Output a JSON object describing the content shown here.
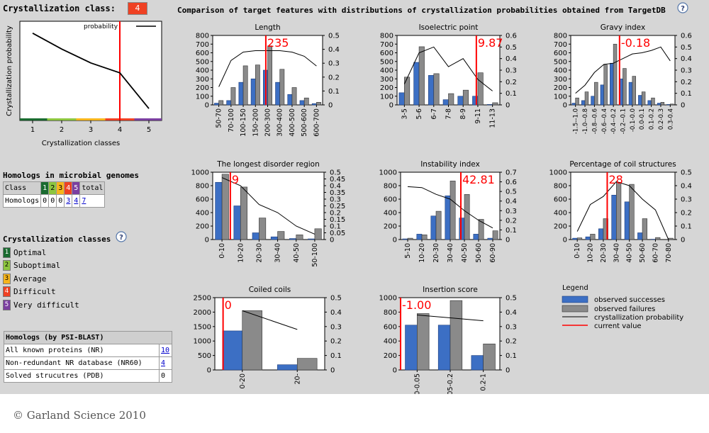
{
  "header": {
    "class_label": "Crystallization class:",
    "class_value": "4",
    "title": "Comparison of target features with distributions of crystallization probabilities obtained from TargetDB"
  },
  "colors": {
    "success": "#3c6fc4",
    "failure": "#8a8a8a",
    "current": "#ff0000",
    "line": "#000000",
    "c1": "#1a6b30",
    "c2": "#8dc63f",
    "c3": "#f7b51c",
    "c4": "#ef4123",
    "c5": "#7b3fa0"
  },
  "left_chart": {
    "type": "line",
    "ylabel": "Crystallization probability",
    "xlabel": "Crystallization classes",
    "legend": "probability",
    "x": [
      1,
      2,
      3,
      4,
      5
    ],
    "y": [
      0.88,
      0.72,
      0.58,
      0.48,
      0.12
    ],
    "ylim": [
      0,
      1
    ],
    "ticks": [
      "1",
      "2",
      "3",
      "4",
      "5"
    ],
    "current": 4
  },
  "chart_data": [
    {
      "type": "bar",
      "title": "Length",
      "categories": [
        "50-70",
        "70-100",
        "100-150",
        "150-200",
        "200-300",
        "300-400",
        "400-500",
        "500-600",
        "600-700"
      ],
      "series": [
        {
          "name": "observed successes",
          "values": [
            20,
            50,
            260,
            300,
            400,
            260,
            120,
            50,
            15
          ]
        },
        {
          "name": "observed failures",
          "values": [
            50,
            200,
            450,
            460,
            680,
            410,
            200,
            80,
            30
          ]
        },
        {
          "name": "crystallization probability",
          "values": [
            0.13,
            0.32,
            0.38,
            0.39,
            0.39,
            0.39,
            0.38,
            0.35,
            0.28
          ]
        }
      ],
      "ylim": [
        0,
        800
      ],
      "y_ticks": [
        0,
        100,
        200,
        300,
        400,
        500,
        600,
        700,
        800
      ],
      "y2lim": [
        0,
        0.5
      ],
      "y2_ticks": [
        0,
        0.1,
        0.2,
        0.3,
        0.4,
        0.5
      ],
      "current_label": "235",
      "current_pos": 4.35
    },
    {
      "type": "bar",
      "title": "Isoelectric point",
      "categories": [
        "3-5",
        "5-6",
        "6-7",
        "7-8",
        "8-9",
        "9-11",
        "11-13"
      ],
      "series": [
        {
          "name": "observed successes",
          "values": [
            140,
            490,
            340,
            60,
            100,
            100,
            5
          ]
        },
        {
          "name": "observed failures",
          "values": [
            320,
            670,
            360,
            130,
            170,
            370,
            25
          ]
        },
        {
          "name": "crystallization probability",
          "values": [
            0.18,
            0.45,
            0.5,
            0.33,
            0.4,
            0.22,
            0.12
          ]
        }
      ],
      "ylim": [
        0,
        800
      ],
      "y_ticks": [
        0,
        100,
        200,
        300,
        400,
        500,
        600,
        700,
        800
      ],
      "y2lim": [
        0,
        0.6
      ],
      "y2_ticks": [
        0,
        0.1,
        0.2,
        0.3,
        0.4,
        0.5,
        0.6
      ],
      "current_label": "9.87",
      "current_pos": 5.4
    },
    {
      "type": "bar",
      "title": "Gravy index",
      "categories": [
        "-1.5--1.0",
        "-1.0--0.8",
        "-0.8--0.6",
        "-0.6--0.4",
        "-0.4--0.2",
        "-0.2--0.1",
        "-0.1-0.0",
        "0.0-0.1",
        "0.1-0.2",
        "0.2-0.3",
        "0.3-0.4"
      ],
      "series": [
        {
          "name": "observed successes",
          "values": [
            20,
            50,
            100,
            230,
            480,
            300,
            260,
            110,
            50,
            20,
            5
          ]
        },
        {
          "name": "observed failures",
          "values": [
            80,
            150,
            260,
            460,
            700,
            420,
            330,
            150,
            80,
            30,
            10
          ]
        },
        {
          "name": "crystallization probability",
          "values": [
            0.1,
            0.17,
            0.28,
            0.35,
            0.36,
            0.4,
            0.44,
            0.45,
            0.47,
            0.5,
            0.38
          ]
        }
      ],
      "ylim": [
        0,
        800
      ],
      "y_ticks": [
        0,
        100,
        200,
        300,
        400,
        500,
        600,
        700,
        800
      ],
      "y2lim": [
        0,
        0.6
      ],
      "y2_ticks": [
        0,
        0.1,
        0.2,
        0.3,
        0.4,
        0.5,
        0.6
      ],
      "current_label": "-0.18",
      "current_pos": 5.15
    },
    {
      "type": "bar",
      "title": "The longest disorder region",
      "categories": [
        "0-10",
        "10-20",
        "20-30",
        "30-40",
        "40-50",
        "50-100"
      ],
      "series": [
        {
          "name": "observed successes",
          "values": [
            850,
            500,
            100,
            40,
            15,
            10
          ]
        },
        {
          "name": "observed failures",
          "values": [
            970,
            780,
            320,
            120,
            70,
            160
          ]
        },
        {
          "name": "crystallization probability",
          "values": [
            0.46,
            0.4,
            0.26,
            0.2,
            0.1,
            0.04
          ]
        }
      ],
      "ylim": [
        0,
        1000
      ],
      "y_ticks": [
        0,
        200,
        400,
        600,
        800,
        1000
      ],
      "y2lim": [
        0,
        0.5
      ],
      "y2_ticks": [
        0,
        0.05,
        0.1,
        0.15,
        0.2,
        0.25,
        0.3,
        0.35,
        0.4,
        0.45,
        0.5
      ],
      "current_label": "9",
      "current_pos": 0.95
    },
    {
      "type": "bar",
      "title": "Instability index",
      "categories": [
        "5-10",
        "10-20",
        "20-30",
        "30-40",
        "40-50",
        "50-60",
        "60-90"
      ],
      "series": [
        {
          "name": "observed successes",
          "values": [
            10,
            80,
            350,
            650,
            320,
            80,
            20
          ]
        },
        {
          "name": "observed failures",
          "values": [
            20,
            70,
            420,
            870,
            670,
            300,
            130
          ]
        },
        {
          "name": "crystallization probability",
          "values": [
            0.55,
            0.54,
            0.47,
            0.42,
            0.3,
            0.2,
            0.12
          ]
        }
      ],
      "ylim": [
        0,
        1000
      ],
      "y_ticks": [
        0,
        200,
        400,
        600,
        800,
        1000
      ],
      "y2lim": [
        0,
        0.7
      ],
      "y2_ticks": [
        0,
        0.1,
        0.2,
        0.3,
        0.4,
        0.5,
        0.6,
        0.7
      ],
      "current_label": "42.81",
      "current_pos": 4.25
    },
    {
      "type": "bar",
      "title": "Percentage of coil structures",
      "categories": [
        "0-10",
        "10-20",
        "20-30",
        "30-40",
        "40-50",
        "50-60",
        "60-70",
        "70-80"
      ],
      "series": [
        {
          "name": "observed successes",
          "values": [
            20,
            40,
            160,
            660,
            560,
            100,
            5,
            0
          ]
        },
        {
          "name": "observed failures",
          "values": [
            25,
            80,
            310,
            850,
            820,
            310,
            30,
            20
          ]
        },
        {
          "name": "crystallization probability",
          "values": [
            0.06,
            0.26,
            0.32,
            0.43,
            0.4,
            0.3,
            0.22,
            0.0
          ]
        }
      ],
      "ylim": [
        0,
        1000
      ],
      "y_ticks": [
        0,
        200,
        400,
        600,
        800,
        1000
      ],
      "y2lim": [
        0,
        0.5
      ],
      "y2_ticks": [
        0,
        0.1,
        0.2,
        0.3,
        0.4,
        0.5
      ],
      "current_label": "28",
      "current_pos": 2.8
    },
    {
      "type": "bar",
      "title": "Coiled coils",
      "categories": [
        "0-20",
        "20-"
      ],
      "series": [
        {
          "name": "observed successes",
          "values": [
            1350,
            180
          ]
        },
        {
          "name": "observed failures",
          "values": [
            2050,
            400
          ]
        },
        {
          "name": "crystallization probability",
          "values": [
            0.41,
            0.28
          ]
        }
      ],
      "ylim": [
        0,
        2500
      ],
      "y_ticks": [
        0,
        500,
        1000,
        1500,
        2000,
        2500
      ],
      "y2lim": [
        0,
        0.5
      ],
      "y2_ticks": [
        0,
        0.1,
        0.2,
        0.3,
        0.4,
        0.5
      ],
      "current_label": "0",
      "current_pos": 0.15
    },
    {
      "type": "bar",
      "title": "Insertion score",
      "categories": [
        "0-0.05",
        "0.05-0.2",
        "0.2-1"
      ],
      "series": [
        {
          "name": "observed successes",
          "values": [
            620,
            620,
            200
          ]
        },
        {
          "name": "observed failures",
          "values": [
            780,
            960,
            360
          ]
        },
        {
          "name": "crystallization probability",
          "values": [
            0.38,
            0.36,
            0.34
          ]
        }
      ],
      "ylim": [
        0,
        1000
      ],
      "y_ticks": [
        0,
        200,
        400,
        600,
        800,
        1000
      ],
      "y2lim": [
        0,
        0.5
      ],
      "y2_ticks": [
        0,
        0.1,
        0.2,
        0.3,
        0.4,
        0.5
      ],
      "current_label": "-1.00",
      "current_pos": 0.0
    }
  ],
  "legend": {
    "title": "Legend",
    "items": [
      "observed successes",
      "observed failures",
      "crystallization probability",
      "current value"
    ]
  },
  "homologs_microbial": {
    "title": "Homologs in microbial genomes",
    "headers": [
      "Class",
      "1",
      "2",
      "3",
      "4",
      "5",
      "total"
    ],
    "row_label": "Homologs",
    "values": [
      "0",
      "0",
      "0",
      "3",
      "4",
      "7"
    ]
  },
  "cryst_classes": {
    "title": "Crystallization classes",
    "items": [
      {
        "num": "1",
        "label": "Optimal"
      },
      {
        "num": "2",
        "label": "Suboptimal"
      },
      {
        "num": "3",
        "label": "Average"
      },
      {
        "num": "4",
        "label": "Difficult"
      },
      {
        "num": "5",
        "label": "Very difficult"
      }
    ]
  },
  "psi_blast": {
    "title": "Homologs (by PSI-BLAST)",
    "rows": [
      {
        "label": "All known proteins (NR)",
        "value": "10"
      },
      {
        "label": "Non-redundant NR database (NR60)",
        "value": "4"
      },
      {
        "label": "Solved strucutres (PDB)",
        "value": "0"
      }
    ]
  },
  "footer": "© Garland Science 2010"
}
